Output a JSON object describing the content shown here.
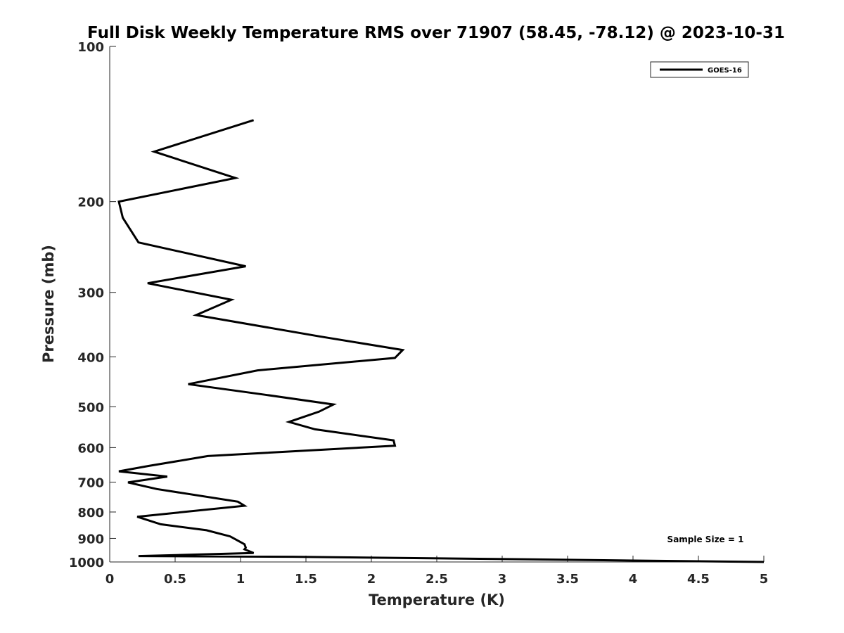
{
  "chart_data": {
    "type": "line",
    "title": "Full Disk Weekly Temperature RMS over 71907 (58.45, -78.12) @ 2023-10-31",
    "xlabel": "Temperature (K)",
    "ylabel": "Pressure (mb)",
    "xlim": [
      0,
      5
    ],
    "ylim": [
      100,
      1000
    ],
    "y_scale": "log",
    "y_reversed": true,
    "x_ticks": [
      "0",
      "0.5",
      "1",
      "1.5",
      "2",
      "2.5",
      "3",
      "3.5",
      "4",
      "4.5",
      "5"
    ],
    "y_ticks": [
      "100",
      "200",
      "300",
      "400",
      "500",
      "600",
      "700",
      "800",
      "900",
      "1000"
    ],
    "grid": false,
    "legend": {
      "position": "top-right",
      "entries": [
        "GOES-16"
      ]
    },
    "annotations": [
      "Sample Size = 1"
    ],
    "series": [
      {
        "name": "GOES-16",
        "color": "#000000",
        "x": [
          1.1,
          0.34,
          0.96,
          0.07,
          0.1,
          0.22,
          1.04,
          0.29,
          0.93,
          0.66,
          1.6,
          2.24,
          2.18,
          1.13,
          0.6,
          1.19,
          1.71,
          1.6,
          1.37,
          1.57,
          2.17,
          2.18,
          0.75,
          0.3,
          0.07,
          0.44,
          0.14,
          0.36,
          0.98,
          1.03,
          0.21,
          0.39,
          0.74,
          0.92,
          1.03,
          1.04,
          1.03,
          1.1,
          0.22,
          1.4,
          5.0
        ],
        "y": [
          139,
          160,
          180,
          200,
          215,
          240,
          267,
          288,
          310,
          332,
          365,
          388,
          402,
          425,
          452,
          474,
          495,
          511,
          535,
          553,
          581,
          595,
          623,
          651,
          667,
          683,
          701,
          722,
          764,
          778,
          817,
          845,
          868,
          892,
          924,
          938,
          945,
          961,
          974,
          977,
          1000
        ]
      }
    ]
  }
}
